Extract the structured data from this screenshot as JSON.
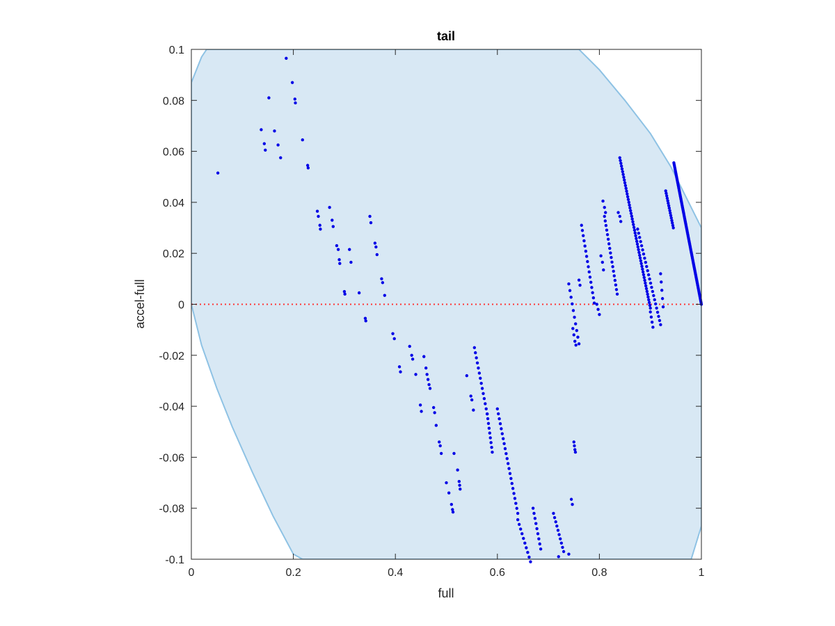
{
  "chart_data": {
    "type": "scatter",
    "title": "tail",
    "xlabel": "full",
    "ylabel": "accel-full",
    "xlim": [
      0,
      1
    ],
    "ylim": [
      -0.1,
      0.1
    ],
    "xticks": [
      0,
      0.2,
      0.4,
      0.6,
      0.8,
      1
    ],
    "xtick_labels": [
      "0",
      "0.2",
      "0.4",
      "0.6",
      "0.8",
      "1"
    ],
    "yticks": [
      0.1,
      0.08,
      0.06,
      0.04,
      0.02,
      0,
      -0.02,
      -0.04,
      -0.06,
      -0.08,
      -0.1
    ],
    "ytick_labels": [
      "0.1",
      "0.08",
      "0.06",
      "0.04",
      "0.02",
      "0",
      "-0.02",
      "-0.04",
      "-0.06",
      "-0.08",
      "-0.1"
    ],
    "grid": false,
    "legend": "none",
    "colors": {
      "points": "#0000e6",
      "region_fill": "#d8e8f4",
      "region_edge": "#8ec2e4",
      "zero_line": "#ff3333",
      "axes": "#262626"
    },
    "reference_line": {
      "y": 0,
      "style": "dotted"
    },
    "region": {
      "upper": [
        [
          0,
          0.087
        ],
        [
          0.02,
          0.097
        ],
        [
          0.03,
          0.1
        ],
        [
          0.76,
          0.1
        ],
        [
          0.8,
          0.092
        ],
        [
          0.85,
          0.08
        ],
        [
          0.9,
          0.067
        ],
        [
          0.94,
          0.054
        ],
        [
          0.97,
          0.042
        ],
        [
          1.0,
          0.03
        ]
      ],
      "lower": [
        [
          0,
          0
        ],
        [
          0.02,
          -0.016
        ],
        [
          0.05,
          -0.033
        ],
        [
          0.08,
          -0.048
        ],
        [
          0.12,
          -0.066
        ],
        [
          0.16,
          -0.083
        ],
        [
          0.2,
          -0.098
        ],
        [
          0.218,
          -0.1
        ],
        [
          0.98,
          -0.1
        ],
        [
          1.0,
          -0.087
        ]
      ]
    },
    "segments": [
      [
        0.946,
        0.0555,
        1.0,
        0.0,
        90
      ],
      [
        0.84,
        0.0575,
        0.9,
        -0.0015,
        55
      ],
      [
        0.93,
        0.0445,
        0.945,
        0.03,
        16
      ],
      [
        0.875,
        0.0295,
        0.92,
        -0.008,
        24
      ],
      [
        0.81,
        0.0345,
        0.835,
        0.004,
        18
      ],
      [
        0.765,
        0.031,
        0.79,
        0.0005,
        16
      ],
      [
        0.74,
        0.008,
        0.76,
        -0.0155,
        10
      ],
      [
        0.58,
        -0.043,
        0.59,
        -0.058,
        9
      ],
      [
        0.6,
        -0.041,
        0.64,
        -0.082,
        22
      ],
      [
        0.555,
        -0.017,
        0.58,
        -0.043,
        14
      ],
      [
        0.64,
        -0.0845,
        0.665,
        -0.101,
        10
      ],
      [
        0.67,
        -0.08,
        0.685,
        -0.096,
        9
      ],
      [
        0.71,
        -0.082,
        0.73,
        -0.097,
        10
      ],
      [
        0.795,
        -0.0,
        0.8,
        -0.004,
        3
      ],
      [
        0.9,
        -0.003,
        0.905,
        -0.009,
        4
      ],
      [
        0.92,
        0.012,
        0.925,
        -0.001,
        5
      ]
    ],
    "points": [
      [
        0.052,
        0.0515
      ],
      [
        0.186,
        0.0965
      ],
      [
        0.198,
        0.087
      ],
      [
        0.203,
        0.0805
      ],
      [
        0.204,
        0.079
      ],
      [
        0.152,
        0.081
      ],
      [
        0.137,
        0.0685
      ],
      [
        0.143,
        0.063
      ],
      [
        0.145,
        0.0605
      ],
      [
        0.163,
        0.068
      ],
      [
        0.17,
        0.0625
      ],
      [
        0.175,
        0.0575
      ],
      [
        0.218,
        0.0645
      ],
      [
        0.228,
        0.0545
      ],
      [
        0.229,
        0.0535
      ],
      [
        0.247,
        0.0365
      ],
      [
        0.249,
        0.0345
      ],
      [
        0.252,
        0.031
      ],
      [
        0.253,
        0.0295
      ],
      [
        0.271,
        0.038
      ],
      [
        0.276,
        0.033
      ],
      [
        0.278,
        0.0305
      ],
      [
        0.285,
        0.023
      ],
      [
        0.288,
        0.0215
      ],
      [
        0.29,
        0.0175
      ],
      [
        0.291,
        0.016
      ],
      [
        0.3,
        0.005
      ],
      [
        0.301,
        0.004
      ],
      [
        0.31,
        0.0215
      ],
      [
        0.313,
        0.0165
      ],
      [
        0.329,
        0.0045
      ],
      [
        0.341,
        -0.0055
      ],
      [
        0.342,
        -0.0065
      ],
      [
        0.35,
        0.0345
      ],
      [
        0.352,
        0.032
      ],
      [
        0.36,
        0.024
      ],
      [
        0.362,
        0.0225
      ],
      [
        0.364,
        0.0195
      ],
      [
        0.373,
        0.01
      ],
      [
        0.375,
        0.0085
      ],
      [
        0.379,
        0.0035
      ],
      [
        0.395,
        -0.0115
      ],
      [
        0.398,
        -0.0135
      ],
      [
        0.408,
        -0.0245
      ],
      [
        0.41,
        -0.0265
      ],
      [
        0.428,
        -0.0165
      ],
      [
        0.432,
        -0.02
      ],
      [
        0.434,
        -0.0215
      ],
      [
        0.44,
        -0.0275
      ],
      [
        0.449,
        -0.0395
      ],
      [
        0.451,
        -0.042
      ],
      [
        0.456,
        -0.0205
      ],
      [
        0.46,
        -0.025
      ],
      [
        0.462,
        -0.0275
      ],
      [
        0.464,
        -0.0295
      ],
      [
        0.466,
        -0.0315
      ],
      [
        0.468,
        -0.033
      ],
      [
        0.475,
        -0.0405
      ],
      [
        0.477,
        -0.0425
      ],
      [
        0.48,
        -0.0475
      ],
      [
        0.486,
        -0.054
      ],
      [
        0.488,
        -0.0555
      ],
      [
        0.49,
        -0.0585
      ],
      [
        0.5,
        -0.07
      ],
      [
        0.505,
        -0.074
      ],
      [
        0.51,
        -0.0785
      ],
      [
        0.512,
        -0.0805
      ],
      [
        0.513,
        -0.0815
      ],
      [
        0.515,
        -0.0585
      ],
      [
        0.522,
        -0.065
      ],
      [
        0.525,
        -0.0695
      ],
      [
        0.526,
        -0.071
      ],
      [
        0.527,
        -0.0725
      ],
      [
        0.54,
        -0.028
      ],
      [
        0.548,
        -0.036
      ],
      [
        0.55,
        -0.0375
      ],
      [
        0.553,
        -0.0415
      ],
      [
        0.75,
        -0.054
      ],
      [
        0.751,
        -0.0555
      ],
      [
        0.752,
        -0.057
      ],
      [
        0.753,
        -0.058
      ],
      [
        0.745,
        -0.0765
      ],
      [
        0.747,
        -0.0785
      ],
      [
        0.74,
        -0.098
      ],
      [
        0.72,
        -0.099
      ],
      [
        0.76,
        0.0095
      ],
      [
        0.762,
        0.0075
      ],
      [
        0.803,
        0.019
      ],
      [
        0.806,
        0.0165
      ],
      [
        0.808,
        0.0135
      ],
      [
        0.807,
        0.0405
      ],
      [
        0.81,
        0.038
      ],
      [
        0.812,
        0.036
      ],
      [
        0.837,
        0.036
      ],
      [
        0.84,
        0.0345
      ],
      [
        0.842,
        0.0325
      ],
      [
        0.748,
        -0.0095
      ],
      [
        0.75,
        -0.012
      ],
      [
        0.752,
        -0.0145
      ],
      [
        0.754,
        -0.016
      ]
    ]
  }
}
